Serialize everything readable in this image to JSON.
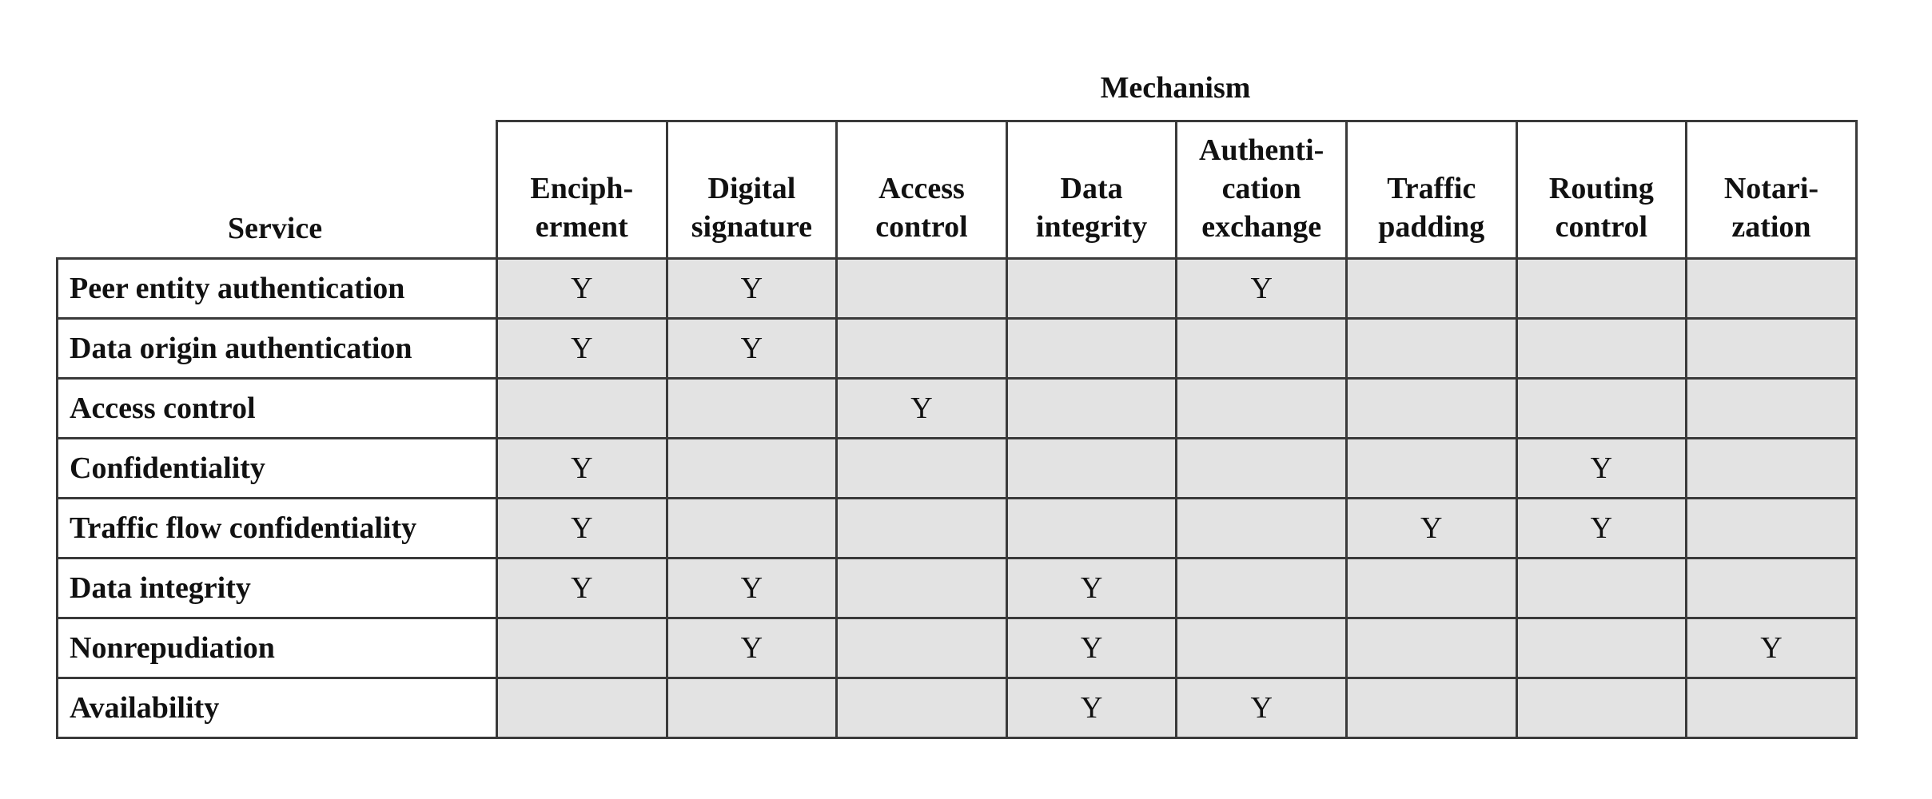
{
  "table": {
    "group_header": "Mechanism",
    "row_header": "Service",
    "mechanisms": [
      "Enciph-\nerment",
      "Digital\nsignature",
      "Access\ncontrol",
      "Data\nintegrity",
      "Authenti-\ncation\nexchange",
      "Traffic\npadding",
      "Routing\ncontrol",
      "Notari-\nzation"
    ],
    "rows": [
      {
        "service": "Peer entity authentication",
        "cells": [
          "Y",
          "Y",
          "",
          "",
          "Y",
          "",
          "",
          ""
        ]
      },
      {
        "service": "Data origin authentication",
        "cells": [
          "Y",
          "Y",
          "",
          "",
          "",
          "",
          "",
          ""
        ]
      },
      {
        "service": "Access control",
        "cells": [
          "",
          "",
          "Y",
          "",
          "",
          "",
          "",
          ""
        ]
      },
      {
        "service": "Confidentiality",
        "cells": [
          "Y",
          "",
          "",
          "",
          "",
          "",
          "Y",
          ""
        ]
      },
      {
        "service": "Traffic flow confidentiality",
        "cells": [
          "Y",
          "",
          "",
          "",
          "",
          "Y",
          "Y",
          ""
        ]
      },
      {
        "service": "Data integrity",
        "cells": [
          "Y",
          "Y",
          "",
          "Y",
          "",
          "",
          "",
          ""
        ]
      },
      {
        "service": "Nonrepudiation",
        "cells": [
          "",
          "Y",
          "",
          "Y",
          "",
          "",
          "",
          "Y"
        ]
      },
      {
        "service": "Availability",
        "cells": [
          "",
          "",
          "",
          "Y",
          "Y",
          "",
          "",
          ""
        ]
      }
    ]
  }
}
